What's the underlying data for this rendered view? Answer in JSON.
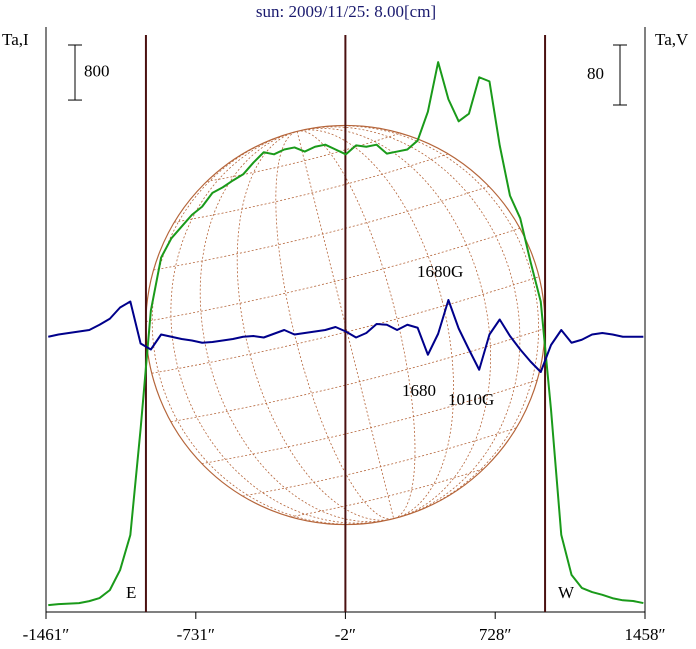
{
  "chart_data": {
    "type": "line",
    "title": "sun: 2009/11/25: 8.00[cm]",
    "ylabel": "Ta,I",
    "y2label": "Ta,V",
    "yscale_bar": 800,
    "y2scale_bar": 80,
    "xlim": [
      -1461,
      1458
    ],
    "xticks": [
      {
        "value": -1461,
        "label": "-1461″"
      },
      {
        "value": -731,
        "label": "-731″"
      },
      {
        "value": -2,
        "label": "-2″"
      },
      {
        "value": 728,
        "label": "728″"
      },
      {
        "value": 1458,
        "label": "1458″"
      }
    ],
    "ylim": [
      -100,
      8400
    ],
    "y2lim": [
      -367,
      413
    ],
    "vlines": [
      -974,
      -2,
      971
    ],
    "vline_color": "#4a1010",
    "disk_color": "#b5653a",
    "annotations": [
      "1680G",
      "1680",
      "1010G",
      "E",
      "W"
    ],
    "x": [
      -1450,
      -1400,
      -1350,
      -1300,
      -1250,
      -1200,
      -1150,
      -1100,
      -1050,
      -1000,
      -950,
      -900,
      -850,
      -800,
      -750,
      -700,
      -650,
      -600,
      -550,
      -500,
      -450,
      -400,
      -350,
      -300,
      -250,
      -200,
      -150,
      -100,
      -50,
      0,
      50,
      100,
      150,
      200,
      250,
      300,
      350,
      400,
      450,
      500,
      550,
      600,
      650,
      700,
      750,
      800,
      850,
      900,
      950,
      1000,
      1050,
      1100,
      1150,
      1200,
      1250,
      1300,
      1350,
      1400,
      1450
    ],
    "series": [
      {
        "color": "#1a9a1a",
        "axis": "y",
        "values": [
          0,
          15,
          22,
          29,
          58,
          102,
          218,
          509,
          1019,
          2560,
          4280,
          5050,
          5330,
          5500,
          5670,
          5790,
          5990,
          6070,
          6170,
          6260,
          6430,
          6580,
          6550,
          6620,
          6650,
          6590,
          6660,
          6690,
          6620,
          6550,
          6680,
          6660,
          6690,
          6560,
          6590,
          6620,
          6750,
          7170,
          7890,
          7350,
          7030,
          7140,
          7670,
          7610,
          6680,
          5950,
          5620,
          4990,
          4410,
          2840,
          1020,
          440,
          250,
          190,
          150,
          100,
          70,
          60,
          30
        ]
      },
      {
        "color": "#00008b",
        "axis": "y2",
        "values": [
          0,
          3,
          5,
          7,
          9,
          16,
          24,
          39,
          47,
          -9,
          -17,
          3,
          0,
          -3,
          -5,
          -8,
          -7,
          -5,
          -3,
          0,
          1,
          -1,
          4,
          9,
          3,
          5,
          7,
          9,
          13,
          7,
          -1,
          5,
          17,
          16,
          9,
          16,
          12,
          -24,
          4,
          49,
          11,
          -17,
          -44,
          3,
          23,
          1,
          -17,
          -33,
          -47,
          -11,
          9,
          -8,
          -4,
          3,
          5,
          3,
          0,
          0,
          0
        ]
      }
    ]
  }
}
